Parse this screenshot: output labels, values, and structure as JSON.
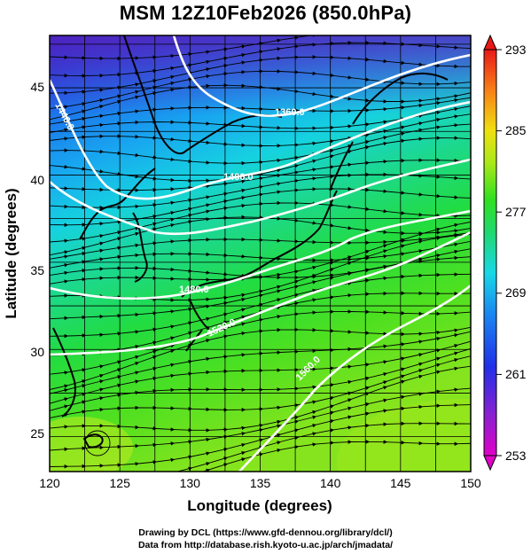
{
  "title": "MSM 12Z10Feb2026 (850.0hPa)",
  "x_axis": {
    "label": "Longitude (degrees)",
    "range": [
      120,
      150
    ],
    "ticks": [
      "120",
      "125",
      "130",
      "135",
      "140",
      "145",
      "150"
    ]
  },
  "y_axis": {
    "label": "Latitude  (degrees)",
    "range": [
      23,
      48
    ],
    "ticks": [
      "25",
      "30",
      "35",
      "40",
      "45"
    ]
  },
  "colorbar": {
    "range": [
      253,
      293
    ],
    "ticks": [
      "253",
      "261",
      "269",
      "277",
      "285",
      "293"
    ],
    "colors": [
      "#e000c8",
      "#8a1fd0",
      "#2030e8",
      "#1a88f0",
      "#18d8e8",
      "#20d870",
      "#30e020",
      "#a8e818",
      "#f0e010",
      "#f88018",
      "#e81818"
    ]
  },
  "contours": [
    {
      "label": "1360.0"
    },
    {
      "label": "1400.0"
    },
    {
      "label": "1440.0"
    },
    {
      "label": "1480.0"
    },
    {
      "label": "1520.0"
    },
    {
      "label": "1560.0"
    }
  ],
  "credits": {
    "line1": "Drawing by DCL (https://www.gfd-dennou.org/library/dcl/)",
    "line2": "Data from http://database.rish.kyoto-u.ac.jp/arch/jmadata/"
  }
}
